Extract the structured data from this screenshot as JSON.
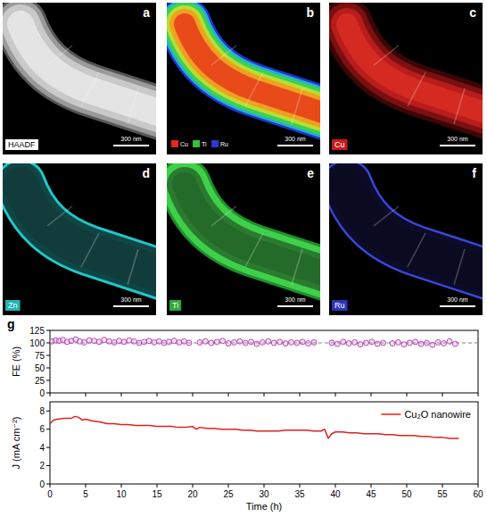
{
  "panels": [
    {
      "letter": "a",
      "label": "HAADF",
      "scale_bar": "300 nm"
    },
    {
      "letter": "b",
      "legend": [
        "Cu",
        "Ti",
        "Ru"
      ],
      "scale_bar": "300 nm"
    },
    {
      "letter": "c",
      "label": "Cu",
      "scale_bar": "300 nm"
    },
    {
      "letter": "d",
      "label": "Zn",
      "scale_bar": "300 nm"
    },
    {
      "letter": "e",
      "label": "Ti",
      "scale_bar": "300 nm"
    },
    {
      "letter": "f",
      "label": "Ru",
      "scale_bar": "300 nm"
    }
  ],
  "chart_data": [
    {
      "type": "scatter",
      "panel_label": "g",
      "y_label": "FE (%)",
      "x": [
        0.3,
        0.8,
        1.3,
        1.8,
        2.4,
        3.0,
        3.6,
        4.2,
        4.8,
        5.5,
        6.2,
        6.9,
        7.6,
        8.3,
        9.0,
        9.7,
        10.4,
        11.1,
        11.8,
        12.5,
        13.2,
        13.9,
        14.6,
        15.3,
        16.0,
        16.7,
        17.4,
        18.1,
        18.8,
        19.5,
        21.0,
        21.8,
        22.6,
        23.4,
        24.2,
        25.0,
        25.8,
        26.6,
        27.4,
        28.2,
        29.0,
        29.8,
        30.6,
        31.4,
        32.2,
        33.0,
        33.8,
        34.6,
        35.4,
        36.2,
        37.0,
        39.5,
        40.3,
        41.1,
        41.9,
        42.7,
        43.5,
        44.3,
        45.1,
        45.9,
        46.7,
        48.0,
        48.8,
        49.6,
        50.4,
        51.2,
        52.0,
        52.8,
        53.6,
        54.4,
        55.2,
        56.0,
        56.8
      ],
      "series": [
        {
          "color": "#b44cb4",
          "marker": "circle",
          "values": [
            103,
            105,
            104,
            106,
            102,
            104,
            107,
            103,
            101,
            105,
            104,
            102,
            106,
            103,
            101,
            104,
            102,
            105,
            103,
            100,
            102,
            104,
            101,
            103,
            100,
            102,
            104,
            101,
            103,
            100,
            101,
            103,
            100,
            102,
            104,
            99,
            101,
            103,
            100,
            102,
            98,
            101,
            103,
            100,
            102,
            99,
            101,
            100,
            102,
            99,
            101,
            100,
            98,
            102,
            99,
            101,
            97,
            100,
            102,
            98,
            100,
            99,
            101,
            97,
            100,
            102,
            98,
            100,
            96,
            101,
            99,
            103,
            98
          ]
        }
      ],
      "reference_line": 100,
      "xlim": [
        0,
        60
      ],
      "xticks": [
        0,
        5,
        10,
        15,
        20,
        25,
        30,
        35,
        40,
        45,
        50,
        55,
        60
      ],
      "ylim": [
        0,
        125
      ],
      "yticks": [
        0,
        25,
        50,
        75,
        100,
        125
      ],
      "tick_labels": "y",
      "grid": false
    },
    {
      "type": "line",
      "x_label": "Time (h)",
      "y_label": "J (mA cm⁻²)",
      "x": [
        0,
        0.5,
        1,
        2,
        3,
        3.5,
        4,
        4.5,
        5,
        6,
        7,
        8,
        9,
        10,
        11,
        12,
        13,
        14,
        15,
        16,
        17,
        18,
        19,
        20,
        20.5,
        21,
        22,
        23,
        24,
        25,
        26,
        27,
        28,
        29,
        30,
        31,
        32,
        33,
        34,
        35,
        36,
        37,
        38,
        38.5,
        39,
        39.5,
        40,
        41,
        42,
        43,
        44,
        45,
        46,
        47,
        48,
        49,
        50,
        51,
        52,
        53,
        54,
        55,
        56,
        57.3
      ],
      "series": [
        {
          "name": "Cu₂O nanowire",
          "color": "#e0211d",
          "line_style": "solid",
          "values": [
            6.6,
            7.0,
            7.1,
            7.2,
            7.2,
            7.4,
            7.3,
            7.0,
            7.1,
            6.9,
            6.8,
            6.6,
            6.6,
            6.5,
            6.5,
            6.4,
            6.4,
            6.4,
            6.3,
            6.3,
            6.3,
            6.2,
            6.2,
            6.3,
            6.0,
            6.2,
            6.1,
            6.1,
            6.0,
            6.0,
            6.0,
            5.9,
            5.9,
            5.8,
            5.8,
            5.8,
            5.8,
            5.9,
            5.9,
            5.9,
            5.9,
            5.8,
            5.8,
            6.0,
            5.0,
            5.5,
            5.7,
            5.7,
            5.6,
            5.6,
            5.5,
            5.5,
            5.5,
            5.4,
            5.4,
            5.3,
            5.3,
            5.3,
            5.2,
            5.2,
            5.1,
            5.1,
            5.0,
            5.0
          ]
        }
      ],
      "xlim": [
        0,
        60
      ],
      "xticks": [
        0,
        5,
        10,
        15,
        20,
        25,
        30,
        35,
        40,
        45,
        50,
        55,
        60
      ],
      "ylim": [
        0,
        9
      ],
      "yticks": [
        0,
        2,
        4,
        6,
        8
      ],
      "legend": "upper right",
      "grid": false
    }
  ]
}
